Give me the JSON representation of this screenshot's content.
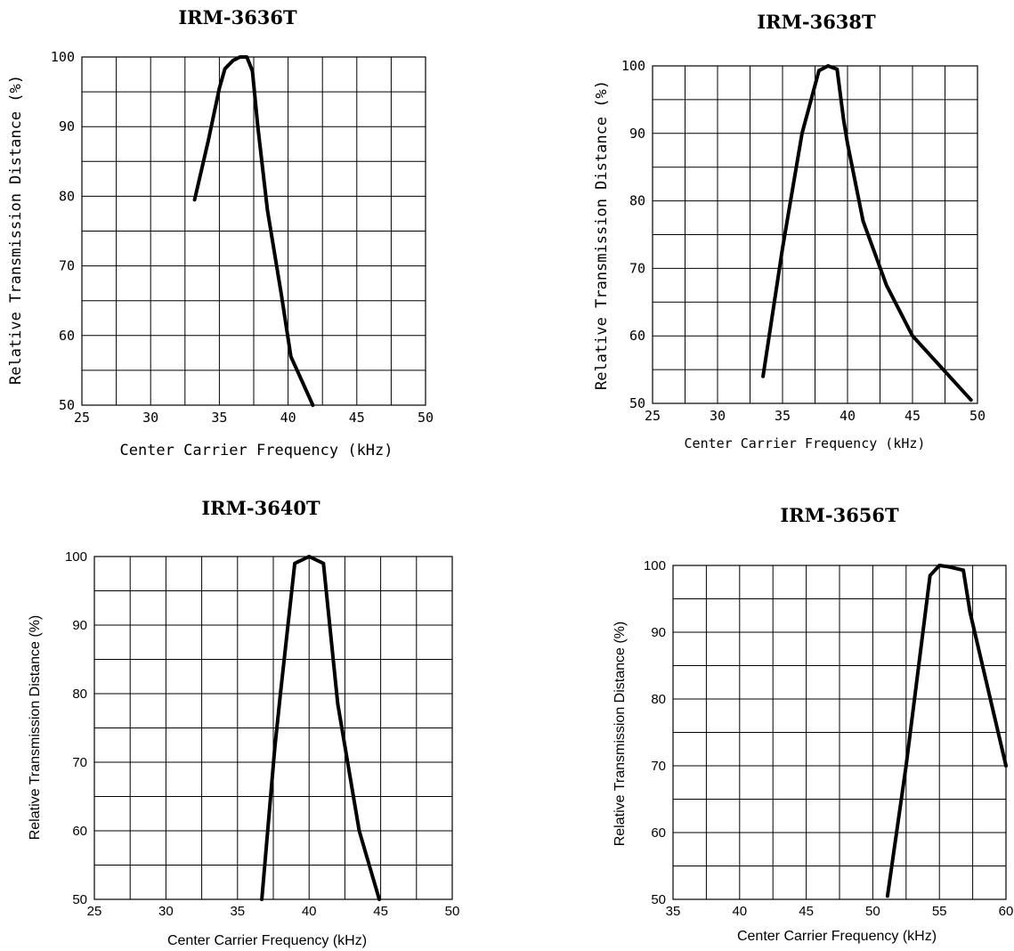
{
  "chart_data": [
    {
      "type": "line",
      "title": "IRM-3636T",
      "xlabel": "Center Carrier Frequency  (kHz)",
      "ylabel": "Relative Transmission Distance (%)",
      "xlim": [
        25,
        50
      ],
      "ylim": [
        50,
        100
      ],
      "xticks": [
        25,
        30,
        35,
        40,
        45,
        50
      ],
      "yticks": [
        50,
        60,
        70,
        80,
        90,
        100
      ],
      "grid": true,
      "x": [
        33.2,
        34.2,
        35.0,
        35.4,
        36.0,
        36.5,
        37.0,
        37.4,
        37.8,
        38.5,
        39.5,
        40.2,
        41.8
      ],
      "y": [
        79.5,
        88.0,
        95.5,
        98.3,
        99.5,
        100.0,
        100.0,
        98.0,
        90.0,
        78.0,
        66.0,
        57.0,
        50.0
      ]
    },
    {
      "type": "line",
      "title": "IRM-3638T",
      "xlabel": "Center Carrier Frequency  (kHz)",
      "ylabel": "Relative Transmission Distance (%)",
      "xlim": [
        25,
        50
      ],
      "ylim": [
        50,
        100
      ],
      "xticks": [
        25,
        30,
        35,
        40,
        45,
        50
      ],
      "yticks": [
        50,
        60,
        70,
        80,
        90,
        100
      ],
      "grid": true,
      "x": [
        33.5,
        35.0,
        36.5,
        37.8,
        38.5,
        39.2,
        39.7,
        40.0,
        41.2,
        43.0,
        45.0,
        49.5
      ],
      "y": [
        54.0,
        73.0,
        90.0,
        99.3,
        100.0,
        99.5,
        92.0,
        88.5,
        77.0,
        67.5,
        60.0,
        50.5
      ]
    },
    {
      "type": "line",
      "title": "IRM-3640T",
      "xlabel": "Center Carrier Frequency  (kHz)",
      "ylabel": "Relative Transmission Distance (%)",
      "xlim": [
        25,
        50
      ],
      "ylim": [
        50,
        100
      ],
      "xticks": [
        25,
        30,
        35,
        40,
        45,
        50
      ],
      "yticks": [
        50,
        60,
        70,
        80,
        90,
        100
      ],
      "grid": true,
      "x": [
        36.7,
        37.6,
        38.0,
        39.0,
        40.0,
        41.0,
        42.0,
        43.5,
        44.9
      ],
      "y": [
        50.0,
        72.0,
        80.0,
        99.0,
        100.0,
        99.0,
        78.5,
        60.0,
        50.0
      ]
    },
    {
      "type": "line",
      "title": "IRM-3656T",
      "xlabel": "Center Carrier Frequency  (kHz)",
      "ylabel": "Relative Transmission Distance (%)",
      "xlim": [
        35,
        60
      ],
      "ylim": [
        50,
        100
      ],
      "xticks": [
        35,
        40,
        45,
        50,
        55,
        60
      ],
      "yticks": [
        50,
        60,
        70,
        80,
        90,
        100
      ],
      "grid": true,
      "x": [
        51.1,
        52.5,
        54.3,
        55.0,
        55.7,
        56.8,
        57.3,
        60.0
      ],
      "y": [
        50.5,
        70.0,
        98.5,
        100.0,
        99.8,
        99.3,
        93.0,
        70.0
      ]
    }
  ]
}
